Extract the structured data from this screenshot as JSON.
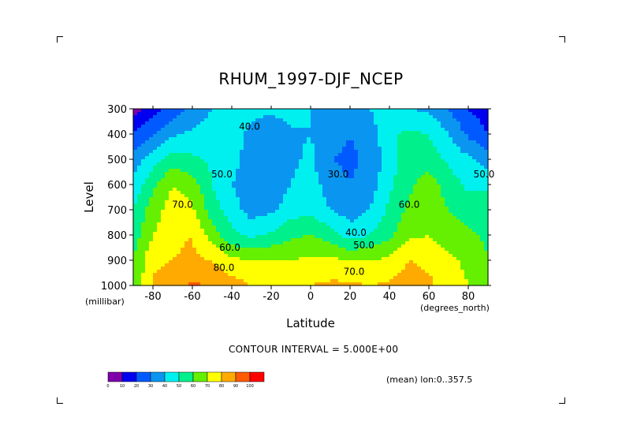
{
  "chart_data": {
    "type": "heatmap",
    "title": "RHUM_1997-DJF_NCEP",
    "xlabel": "Latitude",
    "ylabel": "Level",
    "x_unit": "(degrees_north)",
    "y_unit": "(millibar)",
    "xlim": [
      -90,
      90
    ],
    "ylim": [
      1000,
      300
    ],
    "x_ticks": [
      -80,
      -60,
      -40,
      -20,
      0,
      20,
      40,
      60,
      80
    ],
    "y_ticks": [
      300,
      400,
      500,
      600,
      700,
      800,
      900,
      1000
    ],
    "x_tick_labels": [
      "-80",
      "-60",
      "-40",
      "-20",
      "0",
      "20",
      "40",
      "60",
      "80"
    ],
    "y_tick_labels": [
      "300",
      "400",
      "500",
      "600",
      "700",
      "800",
      "900",
      "1000"
    ],
    "x": [
      -90,
      -80,
      -70,
      -60,
      -50,
      -40,
      -30,
      -20,
      -10,
      0,
      10,
      20,
      30,
      40,
      50,
      60,
      70,
      80,
      90
    ],
    "levels": [
      300,
      400,
      500,
      600,
      700,
      800,
      900,
      1000
    ],
    "values": [
      [
        5,
        15,
        25,
        32,
        40,
        50,
        45,
        42,
        45,
        40,
        38,
        35,
        40,
        48,
        40,
        38,
        30,
        20,
        15
      ],
      [
        20,
        30,
        38,
        42,
        45,
        50,
        35,
        32,
        38,
        40,
        35,
        30,
        35,
        48,
        52,
        50,
        40,
        28,
        20
      ],
      [
        35,
        45,
        55,
        52,
        48,
        45,
        32,
        32,
        38,
        42,
        30,
        28,
        32,
        45,
        55,
        55,
        48,
        42,
        35
      ],
      [
        42,
        58,
        70,
        65,
        50,
        40,
        32,
        33,
        40,
        45,
        35,
        30,
        35,
        48,
        58,
        65,
        55,
        48,
        48
      ],
      [
        50,
        65,
        75,
        72,
        55,
        45,
        35,
        38,
        45,
        48,
        40,
        35,
        40,
        52,
        62,
        68,
        60,
        55,
        55
      ],
      [
        55,
        70,
        78,
        80,
        65,
        52,
        48,
        52,
        58,
        60,
        55,
        45,
        50,
        58,
        68,
        70,
        65,
        62,
        58
      ],
      [
        60,
        78,
        80,
        82,
        80,
        72,
        70,
        70,
        70,
        72,
        72,
        70,
        70,
        72,
        80,
        78,
        72,
        68,
        60
      ],
      [
        60,
        82,
        85,
        92,
        88,
        85,
        80,
        80,
        80,
        80,
        82,
        82,
        80,
        82,
        85,
        82,
        75,
        70,
        62
      ]
    ],
    "contour_labels": [
      {
        "text": "40.0",
        "lat": -31,
        "lev": 370
      },
      {
        "text": "50.0",
        "lat": -45,
        "lev": 560
      },
      {
        "text": "30.0",
        "lat": 14,
        "lev": 560
      },
      {
        "text": "50.0",
        "lat": 88,
        "lev": 560
      },
      {
        "text": "70.0",
        "lat": -65,
        "lev": 680
      },
      {
        "text": "60.0",
        "lat": 50,
        "lev": 680
      },
      {
        "text": "40.0",
        "lat": 23,
        "lev": 790
      },
      {
        "text": "60.0",
        "lat": -41,
        "lev": 850
      },
      {
        "text": "50.0",
        "lat": 27,
        "lev": 840
      },
      {
        "text": "80.0",
        "lat": -44,
        "lev": 930
      },
      {
        "text": "70.0",
        "lat": 22,
        "lev": 945
      }
    ],
    "color_scale": {
      "bounds": [
        "0",
        "10",
        "20",
        "30",
        "40",
        "50",
        "60",
        "70",
        "80",
        "90",
        "100"
      ],
      "colors": [
        "#7f00aa",
        "#0000f0",
        "#005aff",
        "#0a96f0",
        "#00f0f0",
        "#00f08c",
        "#64f000",
        "#ffff00",
        "#ffaa00",
        "#ff5a00",
        "#ff0000"
      ]
    },
    "grid": false,
    "legend": "bottom-left"
  },
  "annotations": {
    "contour_interval": "CONTOUR INTERVAL = 5.000E+00",
    "mean": "(mean) lon:0..357.5"
  }
}
